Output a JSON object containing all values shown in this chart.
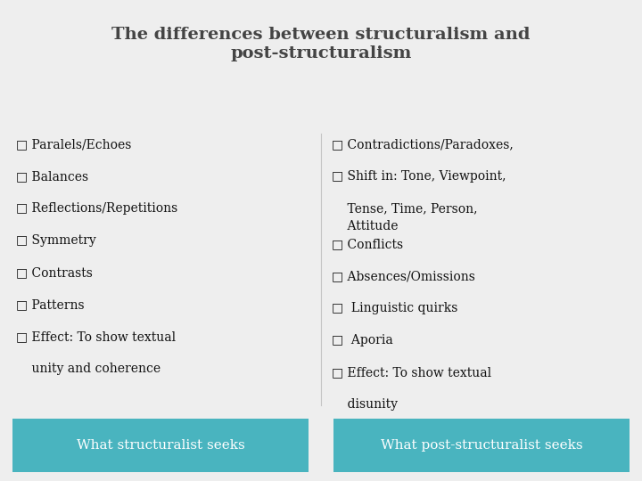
{
  "title_line1": "The differences between structuralism and",
  "title_line2": "post-structuralism",
  "title_fontsize": 14,
  "title_color": "#444444",
  "background_color": "#eeeeee",
  "left_items": [
    [
      "□ Paralels/Echoes",
      false
    ],
    [
      "□ Balances",
      false
    ],
    [
      "□ Reflections/Repetitions",
      false
    ],
    [
      "□ Symmetry",
      false
    ],
    [
      "□ Contrasts",
      false
    ],
    [
      "□ Patterns",
      false
    ],
    [
      "□ Effect: To show textual",
      false
    ],
    [
      "    unity and coherence",
      true
    ]
  ],
  "right_items": [
    [
      "□ Contradictions/Paradoxes,",
      false
    ],
    [
      "□ Shift in: Tone, Viewpoint,",
      false
    ],
    [
      "    Tense, Time, Person,",
      true
    ],
    [
      "    Attitude",
      true
    ],
    [
      "□ Conflicts",
      false
    ],
    [
      "□ Absences/Omissions",
      false
    ],
    [
      "□  Linguistic quirks",
      false
    ],
    [
      "□  Aporia",
      false
    ],
    [
      "□ Effect: To show textual",
      false
    ],
    [
      "    disunity",
      true
    ]
  ],
  "left_footer": "What structuralist seeks",
  "right_footer": "What post-structuralist seeks",
  "footer_bg_color": "#49b4bf",
  "footer_text_color": "#ffffff",
  "footer_fontsize": 11,
  "item_fontsize": 10,
  "item_color": "#111111",
  "divider_color": "#aaaaaa"
}
